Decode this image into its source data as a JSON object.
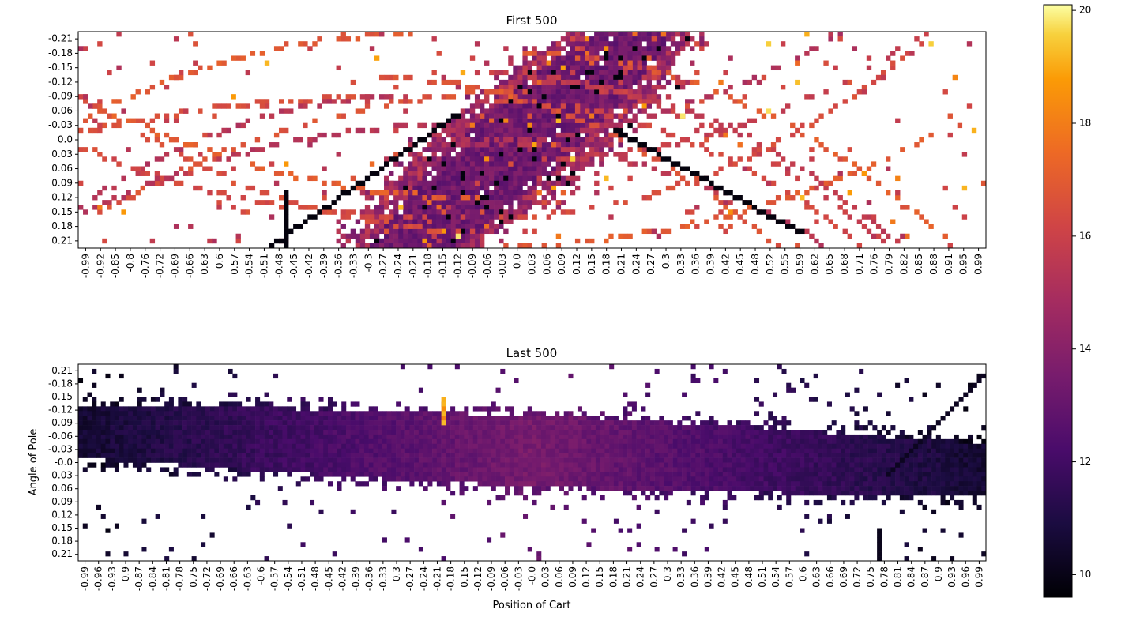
{
  "chart_data": [
    {
      "type": "heatmap",
      "title": "First 500",
      "xlabel": "",
      "ylabel": "",
      "x_ticks": [
        "-0.99",
        "-0.92",
        "-0.85",
        "-0.8",
        "-0.76",
        "-0.72",
        "-0.69",
        "-0.66",
        "-0.63",
        "-0.6",
        "-0.57",
        "-0.54",
        "-0.51",
        "-0.48",
        "-0.45",
        "-0.42",
        "-0.39",
        "-0.36",
        "-0.33",
        "-0.3",
        "-0.27",
        "-0.24",
        "-0.21",
        "-0.18",
        "-0.15",
        "-0.12",
        "-0.09",
        "-0.06",
        "-0.03",
        "0.0",
        "0.03",
        "0.06",
        "0.09",
        "0.12",
        "0.15",
        "0.18",
        "0.21",
        "0.24",
        "0.27",
        "0.3",
        "0.33",
        "0.36",
        "0.39",
        "0.42",
        "0.45",
        "0.48",
        "0.52",
        "0.55",
        "0.59",
        "0.62",
        "0.65",
        "0.68",
        "0.71",
        "0.76",
        "0.79",
        "0.82",
        "0.85",
        "0.88",
        "0.91",
        "0.95",
        "0.99"
      ],
      "y_ticks": [
        "-0.21",
        "-0.18",
        "-0.15",
        "-0.12",
        "-0.09",
        "-0.06",
        "-0.03",
        "0.0",
        "0.03",
        "0.06",
        "0.09",
        "0.12",
        "0.15",
        "0.18",
        "0.21"
      ],
      "color_range": [
        9.6,
        20.1
      ],
      "colormap": "inferno",
      "description": "Sparse scatter of visited states; a dense band of values 12-14 runs diagonally from about x=-0.24 at angle 0.21 to about x=0.24 at angle -0.21; outer trajectories mostly 15-17; a dark (~10) trajectory near x=-0.48..-0.12 and x=0.12..0.45."
    },
    {
      "type": "heatmap",
      "title": "Last 500",
      "xlabel": "Position of Cart",
      "ylabel": "Angle of Pole",
      "x_ticks": [
        "-0.99",
        "-0.96",
        "-0.93",
        "-0.9",
        "-0.87",
        "-0.84",
        "-0.81",
        "-0.78",
        "-0.75",
        "-0.72",
        "-0.69",
        "-0.66",
        "-0.63",
        "-0.6",
        "-0.57",
        "-0.54",
        "-0.51",
        "-0.48",
        "-0.45",
        "-0.42",
        "-0.39",
        "-0.36",
        "-0.33",
        "-0.3",
        "-0.27",
        "-0.24",
        "-0.21",
        "-0.18",
        "-0.15",
        "-0.12",
        "-0.09",
        "-0.06",
        "-0.03",
        "-0.0",
        "0.03",
        "0.06",
        "0.09",
        "0.12",
        "0.15",
        "0.18",
        "0.21",
        "0.24",
        "0.27",
        "0.3",
        "0.33",
        "0.36",
        "0.39",
        "0.42",
        "0.45",
        "0.48",
        "0.51",
        "0.54",
        "0.57",
        "0.6",
        "0.63",
        "0.66",
        "0.69",
        "0.72",
        "0.75",
        "0.78",
        "0.81",
        "0.84",
        "0.87",
        "0.9",
        "0.93",
        "0.96",
        "0.99"
      ],
      "y_ticks": [
        "-0.21",
        "-0.18",
        "-0.15",
        "-0.12",
        "-0.09",
        "-0.06",
        "-0.03",
        "-0.0",
        "0.03",
        "0.06",
        "0.09",
        "0.12",
        "0.15",
        "0.18",
        "0.21"
      ],
      "color_range": [
        9.6,
        20.1
      ],
      "colormap": "inferno",
      "description": "Dense horizontal band across all positions; near the centre the band spans about angle -0.09..0.09 with values ~13.5, fading to darker ~10.5-11 toward both ends; band tilts slightly down to the right."
    }
  ],
  "colorbar": {
    "ticks": [
      "10",
      "12",
      "14",
      "16",
      "18",
      "20"
    ],
    "min": 9.6,
    "max": 20.1
  }
}
